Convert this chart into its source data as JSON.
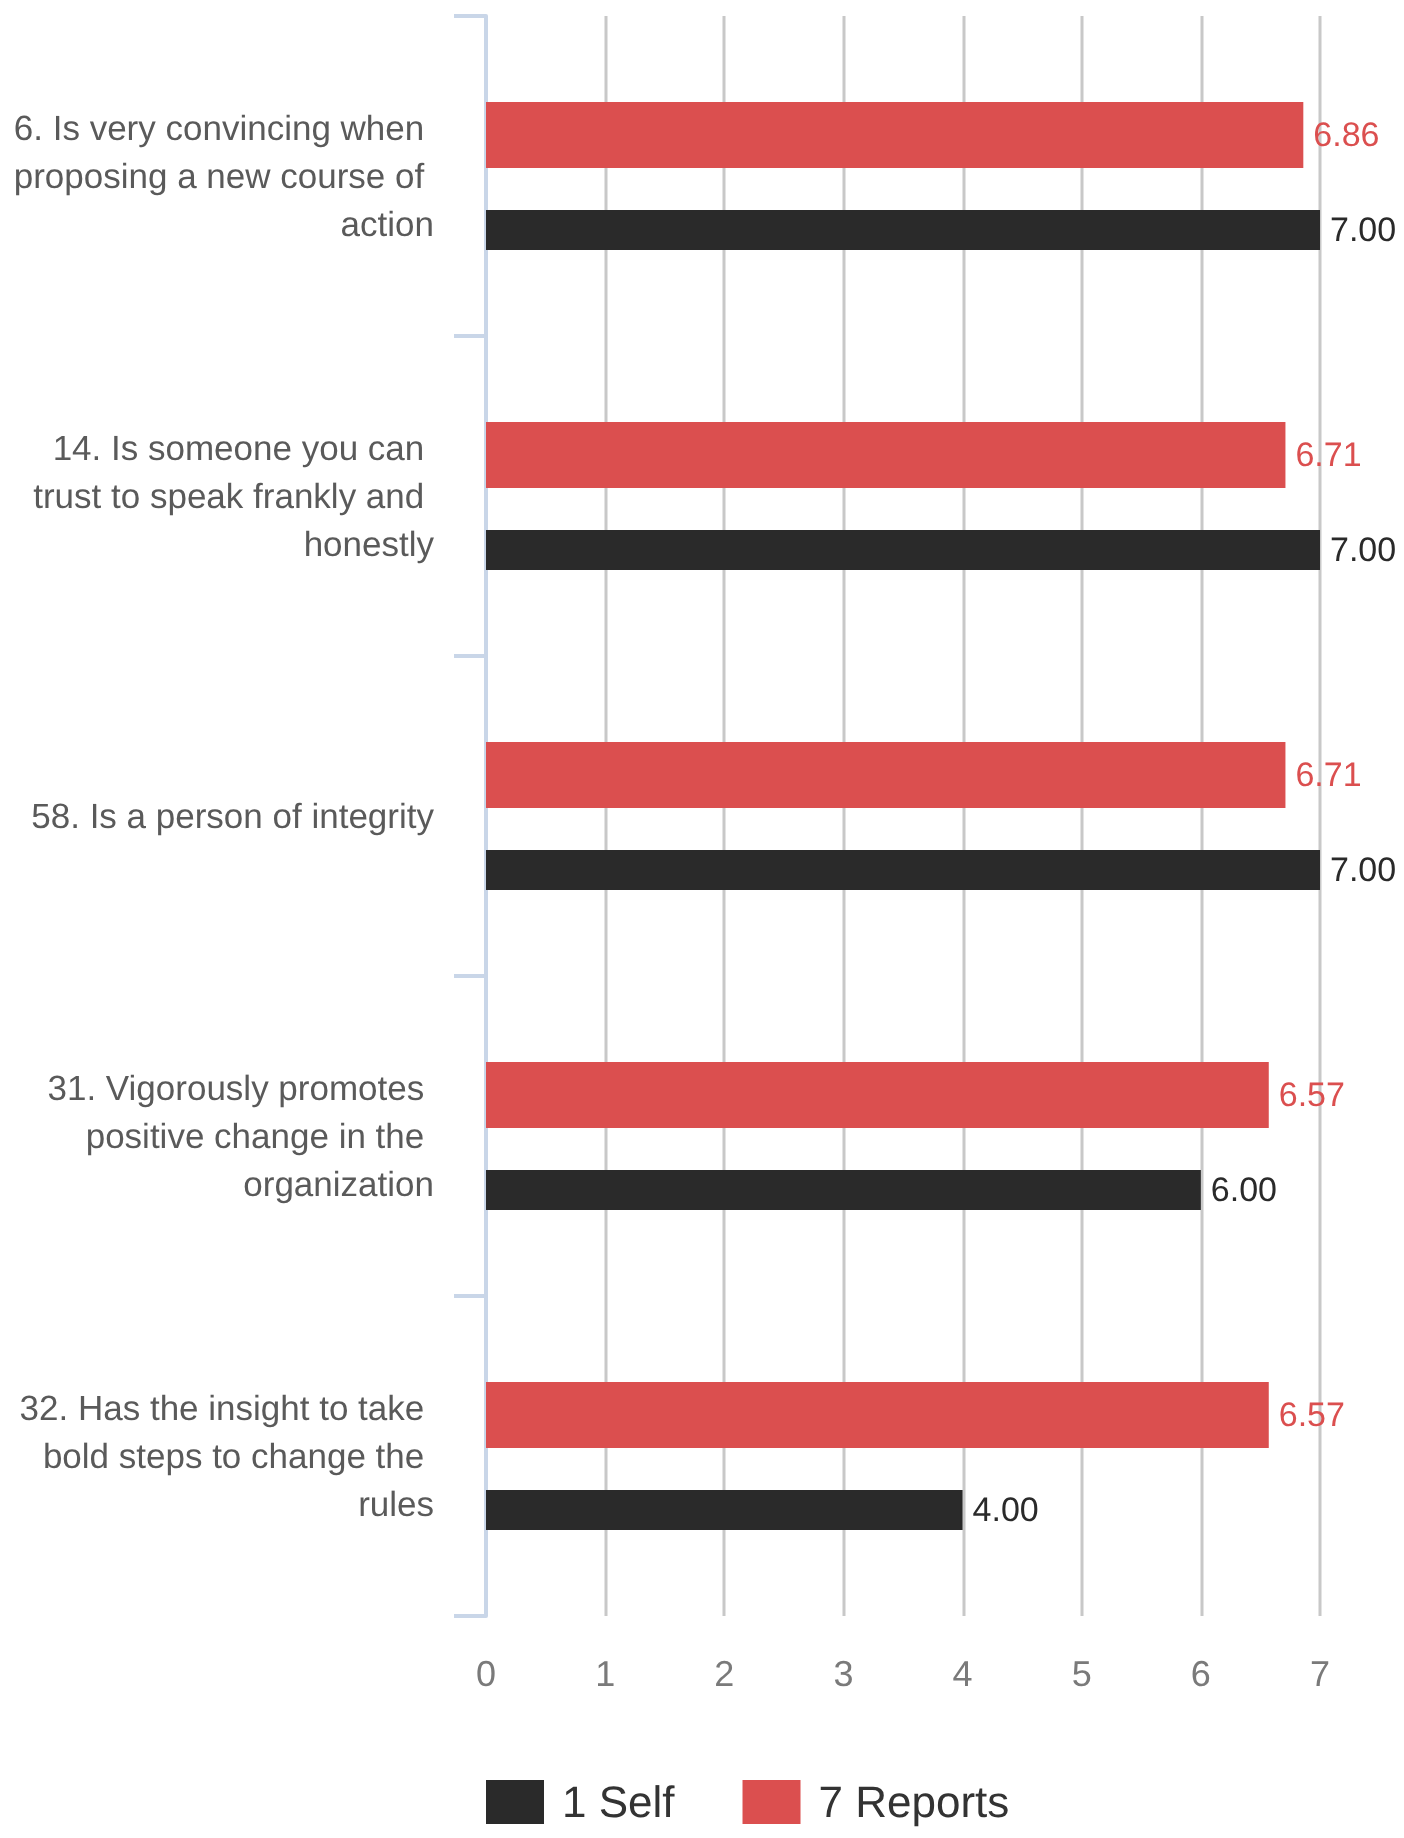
{
  "chart_data": {
    "type": "bar",
    "orientation": "horizontal",
    "categories": [
      "6. Is very convincing when proposing a new course of action",
      "14. Is someone you can trust to speak frankly and honestly",
      "58. Is a person of integrity",
      "31. Vigorously promotes positive change in the organization",
      "32. Has the insight to take bold steps to change the rules"
    ],
    "series": [
      {
        "name": "1 Self",
        "color": "#2a2a2a",
        "values": [
          7,
          7,
          7,
          6,
          4
        ],
        "value_labels": [
          "7.00",
          "7.00",
          "7.00",
          "6.00",
          "4.00"
        ]
      },
      {
        "name": "7 Reports",
        "color": "#db4f4f",
        "values": [
          6.86,
          6.71,
          6.71,
          6.57,
          6.57
        ],
        "value_labels": [
          "6.86",
          "6.71",
          "6.71",
          "6.57",
          "6.57"
        ]
      }
    ],
    "xlim": [
      0,
      7
    ],
    "xticks": [
      0,
      1,
      2,
      3,
      4,
      5,
      6,
      7
    ],
    "grid": "x",
    "legend": "bottom"
  }
}
